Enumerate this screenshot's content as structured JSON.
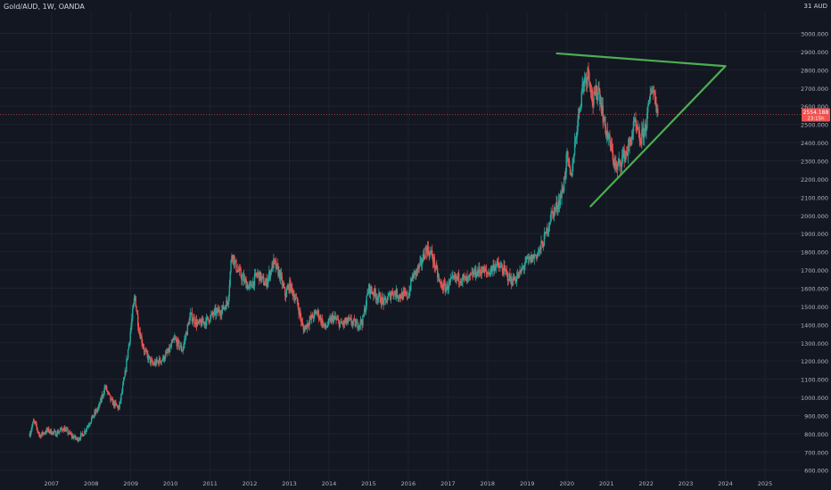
{
  "header": {
    "symbol_label": "Gold/AUD, 1W, OANDA"
  },
  "price_axis": {
    "currency_label": "AUD",
    "currency_prefix": "31"
  },
  "current_price": {
    "label": "2554.188",
    "countdown": "23:15h"
  },
  "colors": {
    "background": "#131722",
    "up": "#26a69a",
    "down": "#ef5350",
    "trendline": "#4caf50",
    "axis_text": "#b2b5be",
    "grid": "#1e222d"
  },
  "chart_data": {
    "type": "candlestick",
    "title": "",
    "xlabel": "",
    "ylabel": "",
    "ylim": [
      540,
      3115
    ],
    "xlim": [
      2005.7,
      2025.9
    ],
    "y_ticks": [
      "600.000",
      "700.000",
      "800.000",
      "900.000",
      "1000.000",
      "1100.000",
      "1200.000",
      "1300.000",
      "1400.000",
      "1500.000",
      "1600.000",
      "1700.000",
      "1800.000",
      "1900.000",
      "2000.000",
      "2100.000",
      "2200.000",
      "2300.000",
      "2400.000",
      "2500.000",
      "2600.000",
      "2700.000",
      "2800.000",
      "2900.000",
      "3000.000"
    ],
    "y_tick_values": [
      600,
      700,
      800,
      900,
      1000,
      1100,
      1200,
      1300,
      1400,
      1500,
      1600,
      1700,
      1800,
      1900,
      2000,
      2100,
      2200,
      2300,
      2400,
      2500,
      2600,
      2700,
      2800,
      2900,
      3000
    ],
    "x_ticks": [
      "2007",
      "2008",
      "2009",
      "2010",
      "2011",
      "2012",
      "2013",
      "2014",
      "2015",
      "2016",
      "2017",
      "2018",
      "2019",
      "2020",
      "2021",
      "2022",
      "2023",
      "2024",
      "2025"
    ],
    "x_tick_values": [
      2007,
      2008,
      2009,
      2010,
      2011,
      2012,
      2013,
      2014,
      2015,
      2016,
      2017,
      2018,
      2019,
      2020,
      2021,
      2022,
      2023,
      2024,
      2025
    ],
    "price_path": [
      [
        2006.45,
        800
      ],
      [
        2006.55,
        870
      ],
      [
        2006.7,
        790
      ],
      [
        2006.9,
        820
      ],
      [
        2007.1,
        800
      ],
      [
        2007.3,
        830
      ],
      [
        2007.5,
        790
      ],
      [
        2007.65,
        770
      ],
      [
        2007.8,
        800
      ],
      [
        2007.95,
        860
      ],
      [
        2008.2,
        950
      ],
      [
        2008.35,
        1060
      ],
      [
        2008.5,
        980
      ],
      [
        2008.7,
        940
      ],
      [
        2008.85,
        1120
      ],
      [
        2009.0,
        1380
      ],
      [
        2009.1,
        1560
      ],
      [
        2009.2,
        1380
      ],
      [
        2009.35,
        1250
      ],
      [
        2009.55,
        1180
      ],
      [
        2009.8,
        1210
      ],
      [
        2009.95,
        1250
      ],
      [
        2010.1,
        1320
      ],
      [
        2010.3,
        1260
      ],
      [
        2010.5,
        1450
      ],
      [
        2010.7,
        1400
      ],
      [
        2010.9,
        1420
      ],
      [
        2011.1,
        1460
      ],
      [
        2011.3,
        1480
      ],
      [
        2011.45,
        1530
      ],
      [
        2011.55,
        1800
      ],
      [
        2011.65,
        1720
      ],
      [
        2011.8,
        1660
      ],
      [
        2012.0,
        1600
      ],
      [
        2012.2,
        1680
      ],
      [
        2012.4,
        1620
      ],
      [
        2012.6,
        1740
      ],
      [
        2012.75,
        1680
      ],
      [
        2012.9,
        1560
      ],
      [
        2013.0,
        1620
      ],
      [
        2013.2,
        1520
      ],
      [
        2013.35,
        1370
      ],
      [
        2013.5,
        1420
      ],
      [
        2013.7,
        1470
      ],
      [
        2013.9,
        1380
      ],
      [
        2014.1,
        1440
      ],
      [
        2014.3,
        1400
      ],
      [
        2014.5,
        1420
      ],
      [
        2014.7,
        1400
      ],
      [
        2014.85,
        1420
      ],
      [
        2015.0,
        1600
      ],
      [
        2015.2,
        1560
      ],
      [
        2015.4,
        1520
      ],
      [
        2015.6,
        1580
      ],
      [
        2015.8,
        1560
      ],
      [
        2016.0,
        1560
      ],
      [
        2016.1,
        1660
      ],
      [
        2016.3,
        1720
      ],
      [
        2016.45,
        1820
      ],
      [
        2016.6,
        1780
      ],
      [
        2016.8,
        1620
      ],
      [
        2016.95,
        1600
      ],
      [
        2017.1,
        1640
      ],
      [
        2017.3,
        1660
      ],
      [
        2017.5,
        1640
      ],
      [
        2017.65,
        1680
      ],
      [
        2017.85,
        1700
      ],
      [
        2018.0,
        1680
      ],
      [
        2018.2,
        1730
      ],
      [
        2018.4,
        1700
      ],
      [
        2018.6,
        1640
      ],
      [
        2018.8,
        1670
      ],
      [
        2018.95,
        1740
      ],
      [
        2019.1,
        1760
      ],
      [
        2019.3,
        1800
      ],
      [
        2019.45,
        1880
      ],
      [
        2019.6,
        2000
      ],
      [
        2019.75,
        2050
      ],
      [
        2019.9,
        2140
      ],
      [
        2020.0,
        2320
      ],
      [
        2020.1,
        2200
      ],
      [
        2020.25,
        2480
      ],
      [
        2020.4,
        2720
      ],
      [
        2020.55,
        2800
      ],
      [
        2020.65,
        2620
      ],
      [
        2020.8,
        2700
      ],
      [
        2020.95,
        2500
      ],
      [
        2021.1,
        2380
      ],
      [
        2021.25,
        2250
      ],
      [
        2021.4,
        2320
      ],
      [
        2021.55,
        2360
      ],
      [
        2021.7,
        2500
      ],
      [
        2021.85,
        2410
      ],
      [
        2022.0,
        2500
      ],
      [
        2022.15,
        2720
      ],
      [
        2022.25,
        2620
      ],
      [
        2022.3,
        2554
      ]
    ],
    "trendlines": [
      {
        "from": [
          2019.75,
          2890
        ],
        "to": [
          2024.0,
          2820
        ]
      },
      {
        "from": [
          2020.6,
          2050
        ],
        "to": [
          2024.0,
          2820
        ]
      }
    ],
    "current_price_value": 2554.188
  }
}
